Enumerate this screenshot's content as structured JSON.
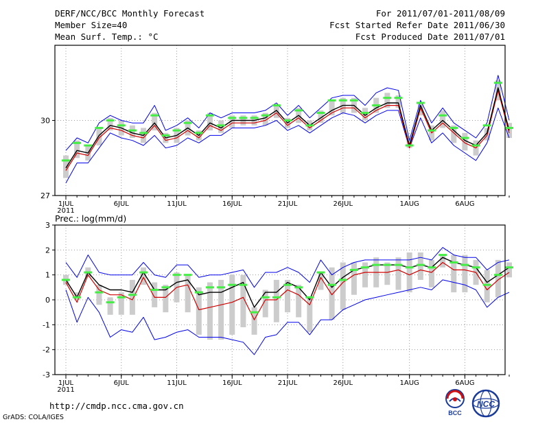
{
  "header": {
    "title": "DERF/NCC/BCC Monthly Forecast",
    "member_size": "Member Size=40",
    "variable": "Mean Surf. Temp.: °C",
    "period": "For 2011/07/01-2011/08/09",
    "fcst_started": "Fcst Started Refer Date 2011/06/30",
    "fcst_produced": "Fcst Produced Date 2011/07/01"
  },
  "footer": {
    "url": "http://cmdp.ncc.cma.gov.cn",
    "grads": "GrADS: COLA/IGES",
    "logo_bcc": "BCC",
    "logo_ncc": "NCC"
  },
  "colors": {
    "ensemble_mean": "#000000",
    "median": "#d00000",
    "spread": "#0000ee",
    "bar": "#cccccc",
    "marker": "#44ee44"
  },
  "chart_data": [
    {
      "type": "line",
      "title": "Mean Surf. Temp.: °C",
      "x_tick_labels": [
        "1JUL",
        "6JUL",
        "11JUL",
        "16JUL",
        "21JUL",
        "26JUL",
        "1AUG",
        "6AUG"
      ],
      "x_tick_index": [
        0,
        5,
        10,
        15,
        20,
        25,
        31,
        36
      ],
      "year_label": "2011",
      "ylim": [
        27,
        33
      ],
      "y_ticks": [
        27,
        30
      ],
      "series": [
        {
          "name": "ensemble_mean",
          "values": [
            28.1,
            28.8,
            28.7,
            29.4,
            29.8,
            29.7,
            29.5,
            29.4,
            29.9,
            29.3,
            29.4,
            29.7,
            29.4,
            29.9,
            29.7,
            30.0,
            30.0,
            30.0,
            30.1,
            30.4,
            29.9,
            30.2,
            29.8,
            30.1,
            30.4,
            30.6,
            30.6,
            30.2,
            30.5,
            30.7,
            30.7,
            29.0,
            30.6,
            29.6,
            30.0,
            29.6,
            29.2,
            29.0,
            29.5,
            31.3,
            29.6
          ]
        },
        {
          "name": "median",
          "values": [
            28.0,
            28.7,
            28.6,
            29.3,
            29.7,
            29.6,
            29.4,
            29.3,
            29.8,
            29.2,
            29.3,
            29.6,
            29.3,
            29.8,
            29.6,
            29.9,
            29.9,
            29.9,
            30.0,
            30.3,
            29.8,
            30.1,
            29.7,
            30.0,
            30.3,
            30.5,
            30.5,
            30.1,
            30.4,
            30.6,
            30.6,
            28.9,
            30.5,
            29.5,
            29.9,
            29.5,
            29.1,
            28.9,
            29.4,
            31.2,
            29.5
          ]
        },
        {
          "name": "upper",
          "values": [
            28.8,
            29.3,
            29.1,
            29.9,
            30.2,
            30.0,
            29.9,
            29.9,
            30.6,
            29.6,
            29.8,
            30.1,
            29.7,
            30.3,
            30.1,
            30.3,
            30.3,
            30.3,
            30.4,
            30.7,
            30.2,
            30.6,
            30.1,
            30.5,
            30.9,
            31.0,
            31.0,
            30.6,
            31.1,
            31.3,
            31.2,
            29.2,
            30.8,
            29.9,
            30.5,
            29.9,
            29.6,
            29.3,
            29.9,
            31.8,
            30.0
          ]
        },
        {
          "name": "lower",
          "values": [
            27.5,
            28.3,
            28.3,
            28.9,
            29.5,
            29.3,
            29.2,
            29.0,
            29.4,
            28.9,
            29.0,
            29.3,
            29.1,
            29.4,
            29.4,
            29.7,
            29.7,
            29.7,
            29.8,
            30.0,
            29.6,
            29.8,
            29.5,
            29.8,
            30.1,
            30.3,
            30.2,
            29.9,
            30.2,
            30.4,
            30.4,
            28.9,
            30.1,
            29.1,
            29.5,
            29.0,
            28.7,
            28.4,
            29.1,
            30.5,
            29.3
          ]
        },
        {
          "name": "markers",
          "values": [
            28.4,
            29.1,
            29.0,
            29.7,
            30.0,
            29.8,
            29.6,
            29.5,
            30.2,
            29.4,
            29.6,
            29.9,
            29.5,
            30.2,
            29.8,
            30.1,
            30.1,
            30.1,
            30.2,
            30.6,
            30.0,
            30.4,
            29.8,
            30.3,
            30.8,
            30.8,
            30.8,
            30.3,
            30.6,
            30.9,
            30.9,
            29.0,
            30.7,
            29.6,
            30.2,
            29.7,
            29.3,
            29.0,
            29.8,
            31.5,
            29.7
          ]
        },
        {
          "name": "bar_low",
          "values": [
            27.7,
            28.5,
            28.4,
            29.0,
            29.6,
            29.4,
            29.3,
            29.1,
            29.6,
            29.1,
            29.1,
            29.4,
            29.2,
            29.6,
            29.5,
            29.7,
            29.8,
            29.8,
            29.8,
            30.1,
            29.7,
            29.9,
            29.6,
            29.9,
            30.2,
            30.3,
            30.3,
            30.0,
            30.3,
            30.5,
            30.5,
            28.9,
            30.2,
            29.2,
            29.7,
            29.1,
            28.8,
            28.6,
            29.2,
            30.8,
            29.3
          ]
        },
        {
          "name": "bar_high",
          "values": [
            28.6,
            29.2,
            29.0,
            29.7,
            30.1,
            30.0,
            29.8,
            29.7,
            30.3,
            29.5,
            29.7,
            30.0,
            29.6,
            30.3,
            30.0,
            30.2,
            30.2,
            30.2,
            30.3,
            30.6,
            30.1,
            30.5,
            30.0,
            30.4,
            30.8,
            30.9,
            30.9,
            30.5,
            30.9,
            31.1,
            31.0,
            29.2,
            30.7,
            29.8,
            30.4,
            29.8,
            29.5,
            29.2,
            29.7,
            31.6,
            29.9
          ]
        }
      ]
    },
    {
      "type": "line",
      "title": "Prec.: log(mm/d)",
      "x_tick_labels": [
        "1JUL",
        "6JUL",
        "11JUL",
        "16JUL",
        "21JUL",
        "26JUL",
        "1AUG",
        "6AUG"
      ],
      "x_tick_index": [
        0,
        5,
        10,
        15,
        20,
        25,
        31,
        36
      ],
      "year_label": "2011",
      "ylim": [
        -3,
        3
      ],
      "y_ticks": [
        -3,
        -2,
        -1,
        0,
        1,
        2,
        3
      ],
      "series": [
        {
          "name": "ensemble_mean",
          "values": [
            0.8,
            0.1,
            1.1,
            0.6,
            0.4,
            0.4,
            0.3,
            1.1,
            0.4,
            0.4,
            0.7,
            0.8,
            0.2,
            0.3,
            0.3,
            0.5,
            0.7,
            -0.3,
            0.3,
            0.3,
            0.7,
            0.5,
            0.0,
            1.1,
            0.5,
            0.9,
            1.2,
            1.3,
            1.4,
            1.4,
            1.4,
            1.3,
            1.4,
            1.3,
            1.7,
            1.5,
            1.4,
            1.3,
            0.7,
            1.0,
            1.3
          ]
        },
        {
          "name": "median",
          "values": [
            0.7,
            -0.1,
            1.0,
            0.4,
            0.2,
            0.2,
            0.0,
            0.9,
            0.1,
            0.1,
            0.5,
            0.6,
            -0.4,
            -0.3,
            -0.2,
            -0.1,
            0.1,
            -0.8,
            0.0,
            0.0,
            0.4,
            0.2,
            -0.2,
            0.9,
            0.2,
            0.7,
            1.0,
            1.1,
            1.1,
            1.1,
            1.2,
            1.0,
            1.2,
            1.1,
            1.5,
            1.2,
            1.2,
            1.1,
            0.4,
            0.8,
            1.1
          ]
        },
        {
          "name": "upper",
          "values": [
            1.5,
            0.9,
            1.8,
            1.1,
            1.0,
            1.0,
            1.0,
            1.5,
            1.0,
            0.9,
            1.4,
            1.4,
            0.9,
            1.0,
            1.0,
            1.1,
            1.2,
            0.5,
            1.1,
            1.1,
            1.3,
            1.1,
            0.7,
            1.6,
            1.0,
            1.3,
            1.5,
            1.6,
            1.6,
            1.6,
            1.6,
            1.6,
            1.7,
            1.6,
            2.1,
            1.8,
            1.7,
            1.7,
            1.2,
            1.5,
            1.6
          ]
        },
        {
          "name": "lower",
          "values": [
            0.4,
            -0.9,
            0.1,
            -0.5,
            -1.5,
            -1.2,
            -1.3,
            -0.7,
            -1.6,
            -1.5,
            -1.3,
            -1.2,
            -1.5,
            -1.5,
            -1.5,
            -1.6,
            -1.7,
            -2.2,
            -1.5,
            -1.4,
            -0.9,
            -0.9,
            -1.4,
            -0.8,
            -0.8,
            -0.4,
            -0.2,
            0.0,
            0.1,
            0.2,
            0.3,
            0.4,
            0.5,
            0.4,
            0.8,
            0.7,
            0.6,
            0.4,
            -0.3,
            0.1,
            0.3
          ]
        },
        {
          "name": "markers",
          "values": [
            0.8,
            0.1,
            1.1,
            0.3,
            -0.1,
            0.1,
            0.2,
            1.1,
            0.4,
            0.5,
            1.0,
            1.0,
            0.3,
            0.5,
            0.5,
            0.6,
            0.6,
            -0.5,
            0.1,
            0.1,
            0.6,
            0.5,
            0.1,
            1.1,
            0.6,
            0.8,
            1.2,
            1.3,
            1.4,
            1.4,
            1.4,
            1.3,
            1.4,
            1.3,
            1.8,
            1.5,
            1.4,
            1.3,
            0.6,
            1.0,
            1.3
          ]
        },
        {
          "name": "bar_low",
          "values": [
            0.6,
            0.0,
            0.9,
            -0.2,
            -0.6,
            -0.6,
            -0.6,
            0.6,
            -0.3,
            -0.5,
            -0.1,
            -0.5,
            -1.4,
            -1.6,
            -1.6,
            -1.4,
            -1.1,
            -1.4,
            -0.7,
            -0.9,
            -0.5,
            -0.7,
            -1.3,
            0.4,
            -0.8,
            -0.4,
            0.2,
            0.5,
            0.5,
            0.6,
            0.4,
            0.3,
            0.8,
            0.5,
            1.3,
            0.3,
            0.3,
            0.6,
            -0.1,
            0.1,
            0.9
          ]
        },
        {
          "name": "bar_high",
          "values": [
            1.0,
            0.3,
            1.3,
            0.6,
            0.1,
            0.3,
            0.8,
            1.3,
            0.7,
            0.6,
            1.1,
            1.0,
            0.5,
            0.7,
            0.8,
            1.0,
            1.0,
            -0.3,
            0.4,
            0.8,
            0.8,
            0.6,
            0.1,
            1.1,
            1.3,
            1.5,
            1.5,
            1.5,
            1.7,
            1.5,
            1.7,
            1.9,
            1.9,
            1.6,
            1.8,
            1.8,
            1.8,
            1.6,
            1.2,
            1.6,
            1.5
          ]
        }
      ]
    }
  ]
}
